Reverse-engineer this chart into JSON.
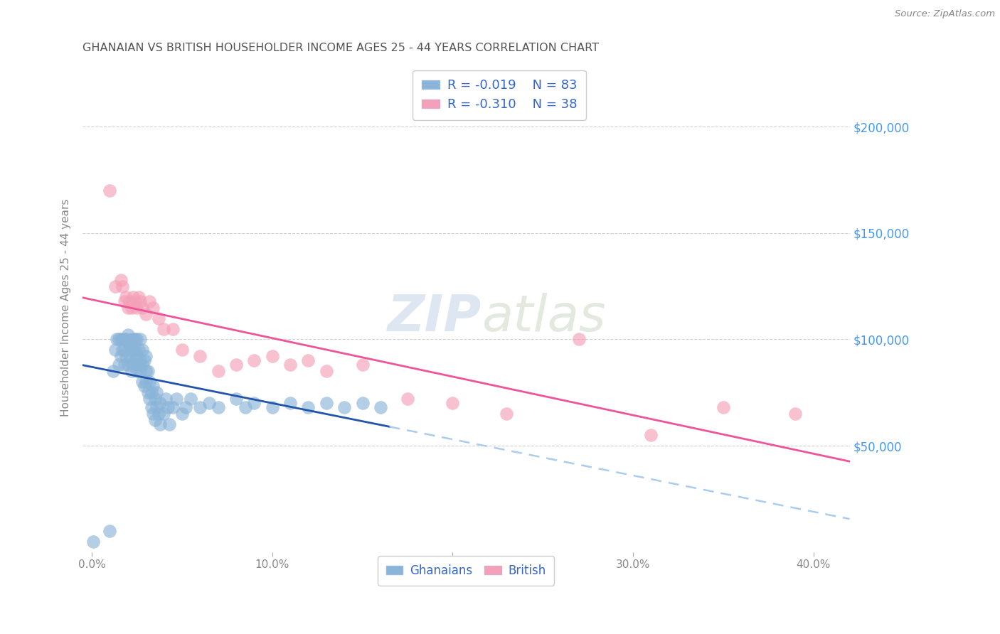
{
  "title": "GHANAIAN VS BRITISH HOUSEHOLDER INCOME AGES 25 - 44 YEARS CORRELATION CHART",
  "source": "Source: ZipAtlas.com",
  "ylabel": "Householder Income Ages 25 - 44 years",
  "xlabel_ticks": [
    "0.0%",
    "10.0%",
    "20.0%",
    "30.0%",
    "40.0%"
  ],
  "xlabel_vals": [
    0.0,
    0.1,
    0.2,
    0.3,
    0.4
  ],
  "ytick_labels": [
    "$50,000",
    "$100,000",
    "$150,000",
    "$200,000"
  ],
  "ytick_vals": [
    50000,
    100000,
    150000,
    200000
  ],
  "ylim": [
    0,
    230000
  ],
  "xlim": [
    -0.005,
    0.42
  ],
  "background_color": "#ffffff",
  "grid_color": "#d0d0d0",
  "blue_scatter": "#8ab4d8",
  "pink_scatter": "#f4a0b8",
  "legend_text_color": "#3366cc",
  "title_color": "#555555",
  "right_label_color": "#4499ee",
  "blue_line_color": "#2255aa",
  "pink_line_color": "#ee5599",
  "dashed_line_color": "#aaccee",
  "ghanaians_R": "-0.019",
  "ghanaians_N": "83",
  "british_R": "-0.310",
  "british_N": "38",
  "ghanaians_x": [
    0.001,
    0.01,
    0.012,
    0.013,
    0.014,
    0.015,
    0.015,
    0.016,
    0.016,
    0.017,
    0.017,
    0.018,
    0.018,
    0.018,
    0.019,
    0.019,
    0.02,
    0.02,
    0.02,
    0.021,
    0.021,
    0.022,
    0.022,
    0.022,
    0.023,
    0.023,
    0.023,
    0.024,
    0.024,
    0.024,
    0.025,
    0.025,
    0.025,
    0.026,
    0.026,
    0.027,
    0.027,
    0.027,
    0.028,
    0.028,
    0.028,
    0.029,
    0.029,
    0.03,
    0.03,
    0.03,
    0.031,
    0.031,
    0.032,
    0.032,
    0.033,
    0.033,
    0.034,
    0.034,
    0.035,
    0.035,
    0.036,
    0.036,
    0.037,
    0.038,
    0.038,
    0.04,
    0.041,
    0.042,
    0.043,
    0.045,
    0.047,
    0.05,
    0.052,
    0.055,
    0.06,
    0.065,
    0.07,
    0.08,
    0.085,
    0.09,
    0.1,
    0.11,
    0.12,
    0.13,
    0.14,
    0.15,
    0.16
  ],
  "ghanaians_y": [
    5000,
    10000,
    85000,
    95000,
    100000,
    88000,
    100000,
    92000,
    100000,
    95000,
    100000,
    88000,
    95000,
    100000,
    92000,
    100000,
    88000,
    95000,
    102000,
    90000,
    98000,
    85000,
    95000,
    100000,
    88000,
    95000,
    100000,
    90000,
    95000,
    100000,
    85000,
    92000,
    100000,
    88000,
    95000,
    85000,
    90000,
    100000,
    80000,
    88000,
    95000,
    78000,
    90000,
    80000,
    85000,
    92000,
    75000,
    85000,
    72000,
    80000,
    68000,
    75000,
    65000,
    78000,
    62000,
    72000,
    68000,
    75000,
    65000,
    60000,
    70000,
    65000,
    72000,
    68000,
    60000,
    68000,
    72000,
    65000,
    68000,
    72000,
    68000,
    70000,
    68000,
    72000,
    68000,
    70000,
    68000,
    70000,
    68000,
    70000,
    68000,
    70000,
    68000
  ],
  "british_x": [
    0.01,
    0.013,
    0.016,
    0.017,
    0.018,
    0.019,
    0.02,
    0.021,
    0.022,
    0.023,
    0.024,
    0.025,
    0.026,
    0.027,
    0.028,
    0.03,
    0.032,
    0.034,
    0.037,
    0.04,
    0.045,
    0.05,
    0.06,
    0.07,
    0.08,
    0.09,
    0.1,
    0.11,
    0.12,
    0.13,
    0.15,
    0.175,
    0.2,
    0.23,
    0.27,
    0.31,
    0.35,
    0.39
  ],
  "british_y": [
    170000,
    125000,
    128000,
    125000,
    118000,
    120000,
    115000,
    118000,
    115000,
    120000,
    118000,
    115000,
    120000,
    118000,
    115000,
    112000,
    118000,
    115000,
    110000,
    105000,
    105000,
    95000,
    92000,
    85000,
    88000,
    90000,
    92000,
    88000,
    90000,
    85000,
    88000,
    72000,
    70000,
    65000,
    100000,
    55000,
    68000,
    65000
  ]
}
